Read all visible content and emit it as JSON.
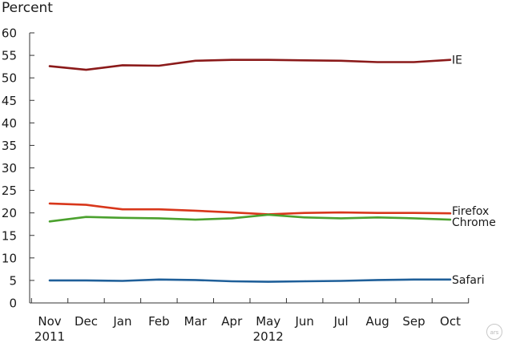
{
  "chart_data": {
    "type": "line",
    "ylabel": "Percent",
    "ylim": [
      0,
      60
    ],
    "yticks": [
      0,
      5,
      10,
      15,
      20,
      25,
      30,
      35,
      40,
      45,
      50,
      55,
      60
    ],
    "x": [
      "Nov",
      "Dec",
      "Jan",
      "Feb",
      "Mar",
      "Apr",
      "May",
      "Jun",
      "Jul",
      "Aug",
      "Sep",
      "Oct"
    ],
    "year_labels": [
      {
        "index": 0,
        "label": "2011"
      },
      {
        "index": 6,
        "label": "2012"
      }
    ],
    "grid": false,
    "legend": "inline labels at right end of lines",
    "series": [
      {
        "name": "IE",
        "color": "#8b1a1a",
        "values": [
          52.6,
          51.8,
          52.8,
          52.7,
          53.8,
          54.0,
          54.0,
          53.9,
          53.8,
          53.5,
          53.5,
          54.0
        ]
      },
      {
        "name": "Firefox",
        "color": "#d8371b",
        "values": [
          22.1,
          21.8,
          20.8,
          20.8,
          20.5,
          20.1,
          19.7,
          20.0,
          20.1,
          20.0,
          20.0,
          19.9
        ]
      },
      {
        "name": "Chrome",
        "color": "#4ba12e",
        "values": [
          18.1,
          19.1,
          18.9,
          18.8,
          18.5,
          18.8,
          19.6,
          19.0,
          18.8,
          19.0,
          18.8,
          18.5
        ]
      },
      {
        "name": "Safari",
        "color": "#1f5f99",
        "values": [
          5.0,
          5.0,
          4.9,
          5.2,
          5.1,
          4.8,
          4.7,
          4.8,
          4.9,
          5.1,
          5.2,
          5.2
        ]
      }
    ]
  },
  "watermark": "ars"
}
